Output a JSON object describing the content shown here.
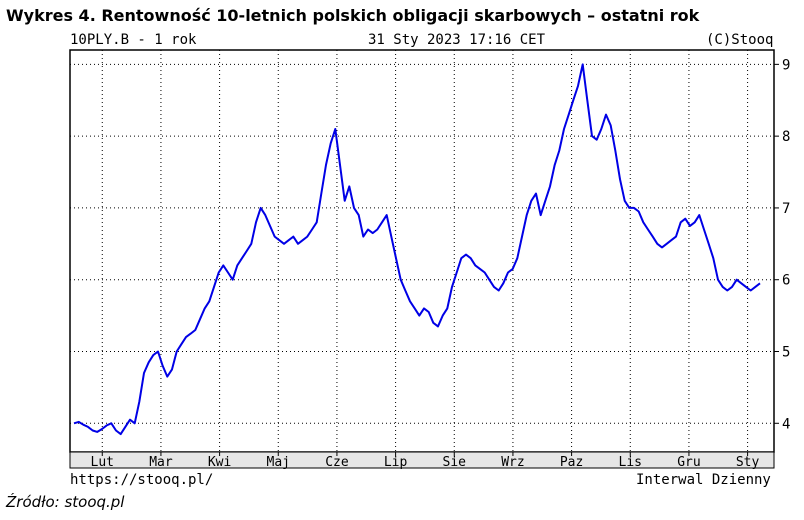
{
  "title": "Wykres 4. Rentowność 10-letnich polskich obligacji skarbowych – ostatni rok",
  "header": {
    "symbol": "10PLY.B - 1 rok",
    "datetime": "31 Sty 2023 17:16 CET",
    "copyright": "(C)Stooq"
  },
  "footer": {
    "url": "https://stooq.pl/",
    "interval": "Interwal Dzienny"
  },
  "source": "Źródło: stooq.pl",
  "colors": {
    "series": "#0000e6",
    "grid": "#000000",
    "background": "#ffffff"
  },
  "chart_data": {
    "type": "line",
    "grid": true,
    "y_axis_position": "right",
    "ylim": [
      3.6,
      9.2
    ],
    "y_ticks": [
      4,
      5,
      6,
      7,
      8,
      9
    ],
    "x_ticks": [
      "Lut",
      "Mar",
      "Kwi",
      "Maj",
      "Cze",
      "Lip",
      "Sie",
      "Wrz",
      "Paz",
      "Lis",
      "Gru",
      "Sty"
    ],
    "series": [
      {
        "values": [
          4.0,
          4.02,
          3.98,
          3.95,
          3.9,
          3.88,
          3.92,
          3.97,
          4.0,
          3.9,
          3.85,
          3.95,
          4.05,
          4.0,
          4.3,
          4.7,
          4.85,
          4.95,
          5.0,
          4.8,
          4.65,
          4.75,
          5.0,
          5.1,
          5.2,
          5.25,
          5.3,
          5.45,
          5.6,
          5.7,
          5.9,
          6.1,
          6.2,
          6.1,
          6.0,
          6.2,
          6.3,
          6.4,
          6.5,
          6.8,
          7.0,
          6.9,
          6.75,
          6.6,
          6.55,
          6.5,
          6.55,
          6.6,
          6.5,
          6.55,
          6.6,
          6.7,
          6.8,
          7.2,
          7.6,
          7.9,
          8.1,
          7.6,
          7.1,
          7.3,
          7.0,
          6.9,
          6.6,
          6.7,
          6.65,
          6.7,
          6.8,
          6.9,
          6.6,
          6.3,
          6.0,
          5.85,
          5.7,
          5.6,
          5.5,
          5.6,
          5.55,
          5.4,
          5.35,
          5.5,
          5.6,
          5.9,
          6.1,
          6.3,
          6.35,
          6.3,
          6.2,
          6.15,
          6.1,
          6.0,
          5.9,
          5.85,
          5.95,
          6.1,
          6.15,
          6.3,
          6.6,
          6.9,
          7.1,
          7.2,
          6.9,
          7.1,
          7.3,
          7.6,
          7.8,
          8.1,
          8.3,
          8.5,
          8.7,
          9.0,
          8.5,
          8.0,
          7.95,
          8.1,
          8.3,
          8.15,
          7.8,
          7.4,
          7.1,
          7.0,
          7.0,
          6.95,
          6.8,
          6.7,
          6.6,
          6.5,
          6.45,
          6.5,
          6.55,
          6.6,
          6.8,
          6.85,
          6.75,
          6.8,
          6.9,
          6.7,
          6.5,
          6.3,
          6.0,
          5.9,
          5.85,
          5.9,
          6.0,
          5.95,
          5.9,
          5.85,
          5.9,
          5.95
        ]
      }
    ]
  }
}
